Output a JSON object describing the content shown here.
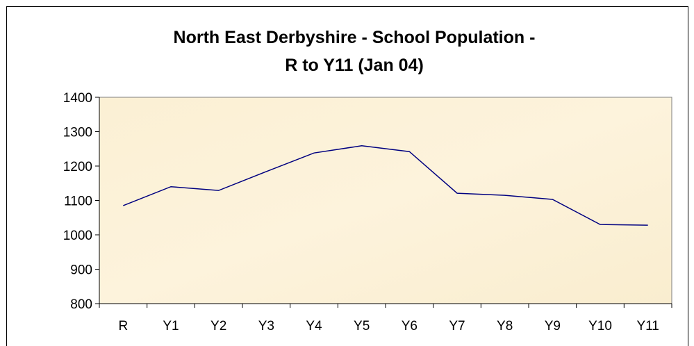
{
  "chart_data": {
    "type": "line",
    "title": [
      "North East Derbyshire - School Population -",
      "R to Y11 (Jan 04)"
    ],
    "categories": [
      "R",
      "Y1",
      "Y2",
      "Y3",
      "Y4",
      "Y5",
      "Y6",
      "Y7",
      "Y8",
      "Y9",
      "Y10",
      "Y11"
    ],
    "series": [
      {
        "name": "School Population",
        "color": "#000080",
        "values": [
          1085,
          1140,
          1129,
          1184,
          1238,
          1259,
          1242,
          1121,
          1115,
          1103,
          1030,
          1028
        ]
      }
    ],
    "ylim": [
      800,
      1400
    ],
    "yticks": [
      800,
      900,
      1000,
      1100,
      1200,
      1300,
      1400
    ],
    "grid": false
  }
}
